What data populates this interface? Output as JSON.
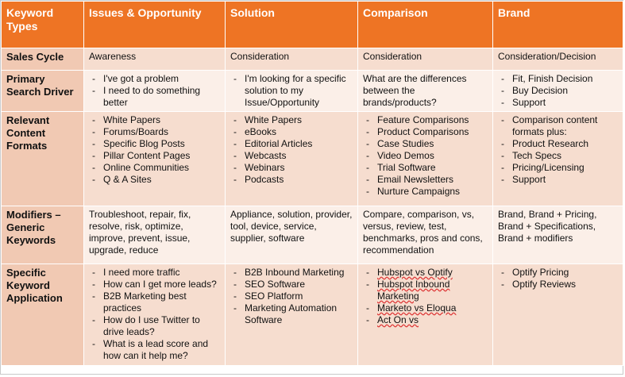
{
  "columns": [
    "Keyword Types",
    "Issues & Opportunity",
    "Solution",
    "Comparison",
    "Brand"
  ],
  "rows": [
    {
      "label": "Sales Cycle",
      "cells": [
        {
          "text": "Awareness"
        },
        {
          "text": "Consideration"
        },
        {
          "text": "Consideration"
        },
        {
          "text": "Consideration/Decision"
        }
      ]
    },
    {
      "label": "Primary Search Driver",
      "cells": [
        {
          "items": [
            "I've got a problem",
            "I need to do something better"
          ]
        },
        {
          "items": [
            "I'm looking for a specific solution to my Issue/Opportunity"
          ]
        },
        {
          "text": "What are the differences between the brands/products?"
        },
        {
          "items": [
            "Fit, Finish Decision",
            "Buy Decision",
            "Support"
          ]
        }
      ]
    },
    {
      "label": "Relevant Content Formats",
      "cells": [
        {
          "items": [
            "White Papers",
            "Forums/Boards",
            "Specific Blog Posts",
            "Pillar Content Pages",
            "Online Communities",
            "Q & A Sites"
          ]
        },
        {
          "items": [
            "White Papers",
            "eBooks",
            "Editorial Articles",
            "Webcasts",
            "Webinars",
            "Podcasts"
          ]
        },
        {
          "items": [
            "Feature Comparisons",
            "Product Comparisons",
            "Case Studies",
            "Video Demos",
            "Trial Software",
            "Email Newsletters",
            "Nurture Campaigns"
          ]
        },
        {
          "items": [
            "Comparison content formats plus:",
            "Product Research",
            "Tech Specs",
            "Pricing/Licensing",
            "Support"
          ]
        }
      ]
    },
    {
      "label": "Modifiers – Generic Keywords",
      "cells": [
        {
          "text": "Troubleshoot, repair, fix, resolve, risk, optimize, improve, prevent, issue, upgrade, reduce"
        },
        {
          "text": "Appliance, solution, provider, tool, device, service, supplier, software"
        },
        {
          "text": "Compare, comparison, vs, versus, review, test, benchmarks, pros and cons, recommendation"
        },
        {
          "text": "Brand, Brand + Pricing, Brand + Specifications, Brand + modifiers"
        }
      ]
    },
    {
      "label": "Specific Keyword Application",
      "cells": [
        {
          "items": [
            "I need more traffic",
            "How can I get more leads?",
            "B2B Marketing best practices",
            "How do I use Twitter to drive leads?",
            "What is a lead score and how can it help me?"
          ]
        },
        {
          "items": [
            "B2B Inbound Marketing",
            "SEO Software",
            "SEO Platform",
            "Marketing Automation Software"
          ]
        },
        {
          "items": [
            "Hubspot vs Optify",
            "Hubspot Inbound Marketing",
            "Marketo vs Eloqua",
            "Act On vs"
          ]
        },
        {
          "items": [
            "Optify Pricing",
            "Optify Reviews"
          ]
        }
      ]
    }
  ]
}
